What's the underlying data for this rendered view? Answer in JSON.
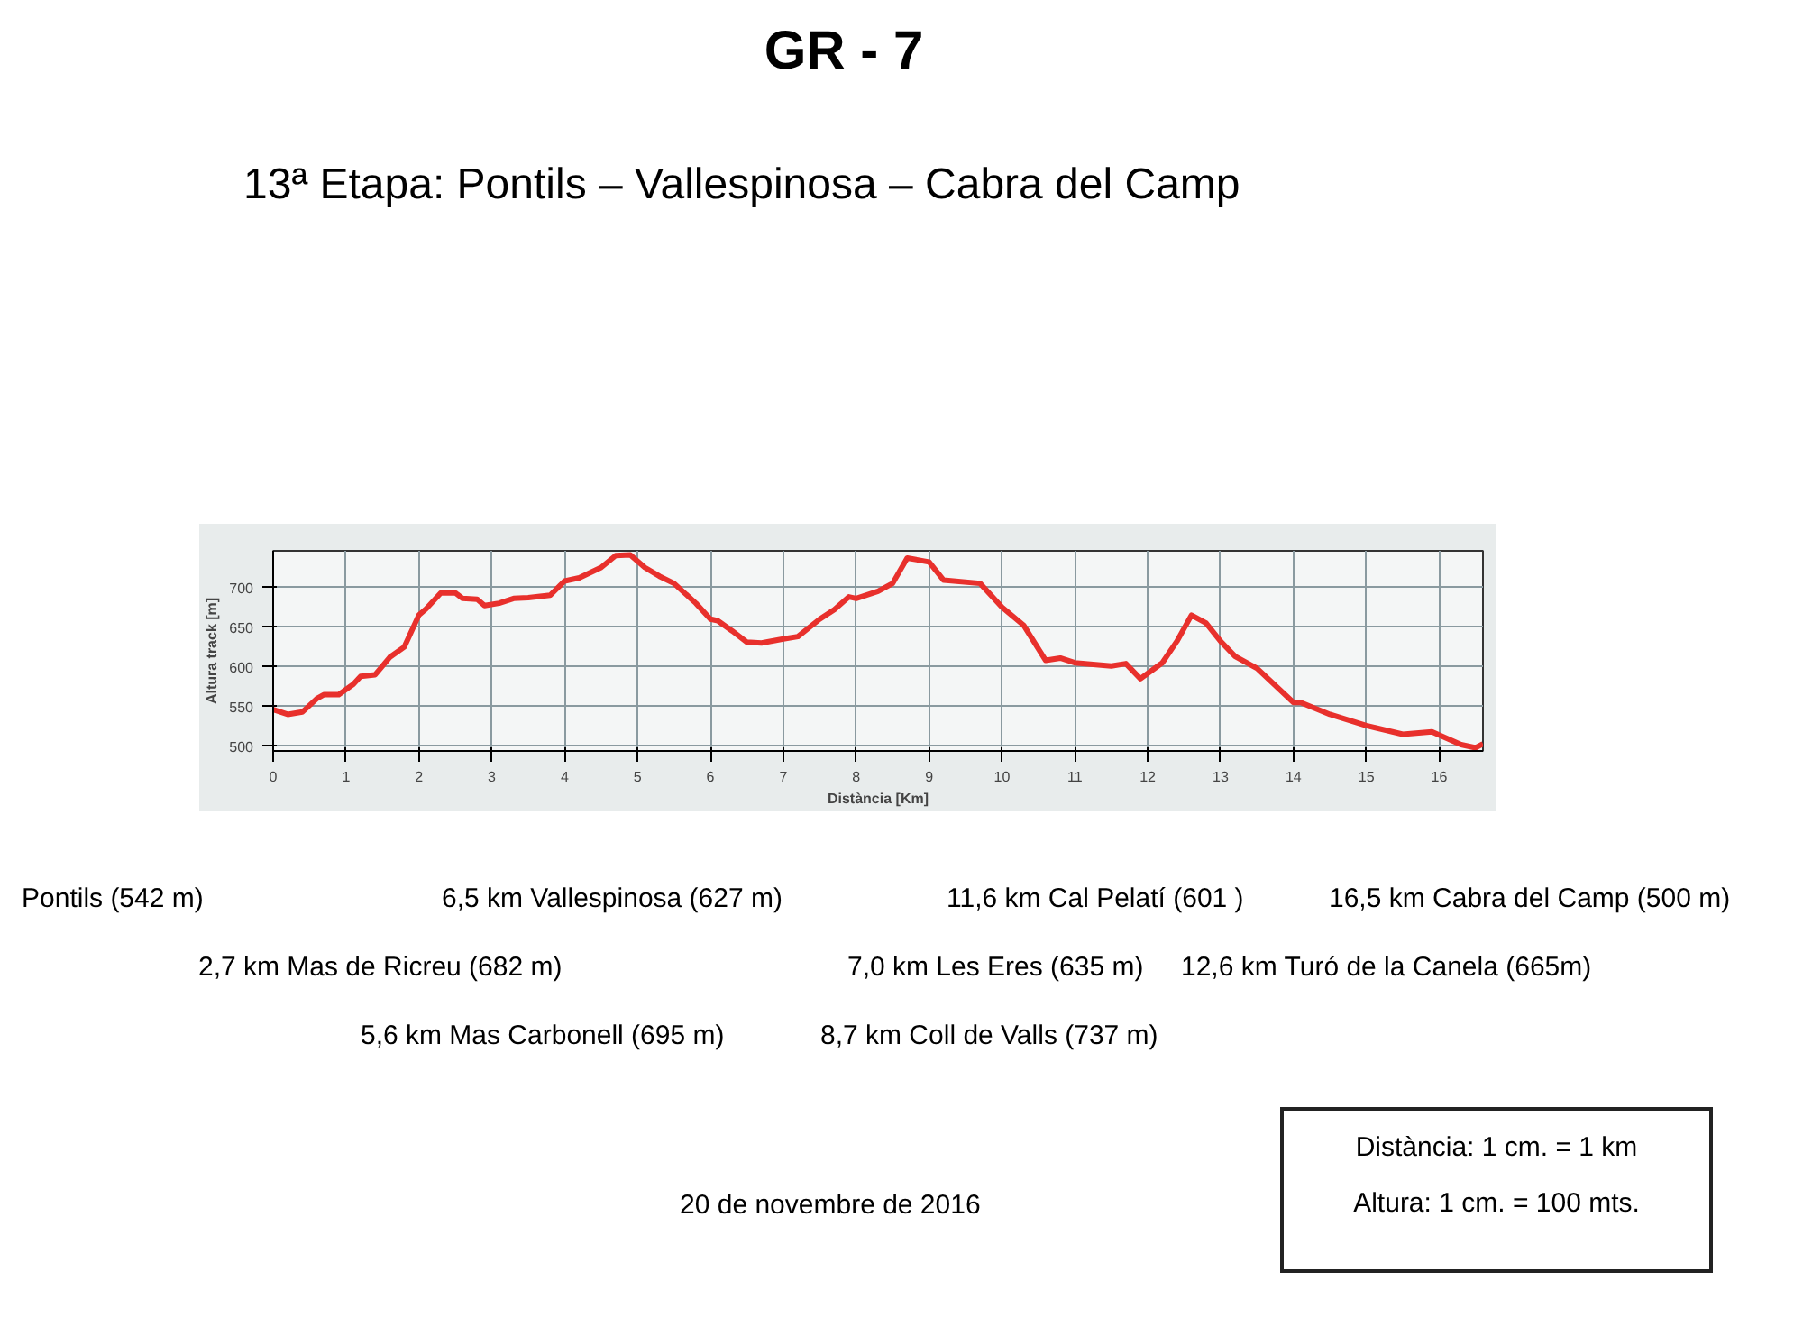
{
  "chart_data": {
    "type": "line",
    "title": "GR - 7",
    "subtitle": "13ª Etapa: Pontils – Vallespinosa – Cabra del Camp",
    "xlabel": "Distància [Km]",
    "ylabel": "Altura track [m]",
    "x": [
      0,
      0.2,
      0.4,
      0.6,
      0.7,
      0.9,
      1.1,
      1.2,
      1.4,
      1.6,
      1.8,
      2.0,
      2.1,
      2.3,
      2.5,
      2.6,
      2.8,
      2.9,
      3.1,
      3.3,
      3.5,
      3.8,
      4.0,
      4.2,
      4.5,
      4.7,
      4.9,
      5.1,
      5.3,
      5.5,
      5.8,
      6.0,
      6.1,
      6.3,
      6.5,
      6.7,
      7.0,
      7.2,
      7.5,
      7.7,
      7.9,
      8.0,
      8.3,
      8.5,
      8.7,
      9.0,
      9.2,
      9.7,
      10.0,
      10.3,
      10.6,
      10.8,
      11.0,
      11.5,
      11.7,
      11.9,
      12.2,
      12.4,
      12.6,
      12.8,
      13.0,
      13.2,
      13.5,
      14.0,
      14.1,
      14.5,
      15.0,
      15.5,
      15.9,
      16.3,
      16.5,
      16.6
    ],
    "series": [
      {
        "color": "#e8302c",
        "values": [
          546,
          540,
          543,
          560,
          565,
          565,
          578,
          588,
          590,
          612,
          625,
          665,
          673,
          693,
          693,
          686,
          685,
          677,
          680,
          686,
          687,
          690,
          708,
          712,
          725,
          740,
          741,
          725,
          714,
          705,
          680,
          660,
          658,
          645,
          631,
          630,
          635,
          638,
          660,
          672,
          688,
          686,
          695,
          705,
          737,
          732,
          709,
          705,
          675,
          652,
          608,
          611,
          605,
          601,
          604,
          585,
          605,
          632,
          665,
          655,
          632,
          613,
          598,
          555,
          555,
          540,
          526,
          515,
          518,
          502,
          498,
          503
        ]
      }
    ],
    "xlim": [
      0,
      16.6
    ],
    "ylim": [
      494,
      746
    ],
    "xticks": [
      0,
      1,
      2,
      3,
      4,
      5,
      6,
      7,
      8,
      9,
      10,
      11,
      12,
      13,
      14,
      15,
      16
    ],
    "yticks": [
      500,
      550,
      600,
      650,
      700
    ],
    "grid": true,
    "annotations": [
      "Pontils (542 m)",
      "6,5 km Vallespinosa (627 m)",
      "11,6 km Cal Pelatí (601 )",
      "16,5 km Cabra del Camp (500 m)",
      "2,7 km Mas de Ricreu (682 m)",
      "7,0 km Les Eres (635 m)",
      "12,6 km Turó de la Canela (665m)",
      "5,6 km Mas Carbonell (695 m)",
      "8,7 km Coll de Valls (737 m)",
      "20 de novembre de 2016",
      "Distància: 1 cm. = 1 km",
      "Altura: 1 cm. = 100 mts."
    ]
  }
}
